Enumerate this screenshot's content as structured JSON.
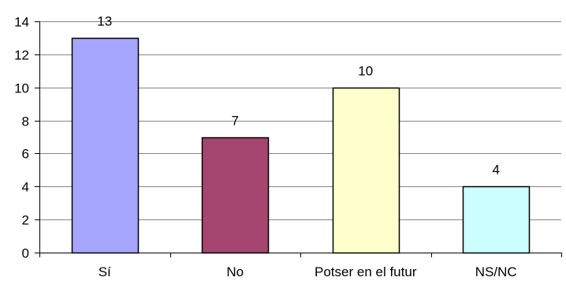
{
  "chart_data": {
    "type": "bar",
    "title": "",
    "xlabel": "",
    "ylabel": "",
    "categories": [
      "Sí",
      "No",
      "Potser en el futur",
      "NS/NC"
    ],
    "values": [
      13,
      7,
      10,
      4
    ],
    "data_labels": [
      "13",
      "7",
      "10",
      "4"
    ],
    "bar_colors": [
      "#a6a6ff",
      "#a44670",
      "#ffffcc",
      "#ccffff"
    ],
    "bar_edge_color": "#000000",
    "ylim": [
      0,
      14
    ],
    "yticks": [
      0,
      2,
      4,
      6,
      8,
      10,
      12,
      14
    ],
    "ytick_labels": [
      "0",
      "2",
      "4",
      "6",
      "8",
      "10",
      "12",
      "14"
    ],
    "grid": true,
    "grid_color": "#868686",
    "legend": false
  }
}
